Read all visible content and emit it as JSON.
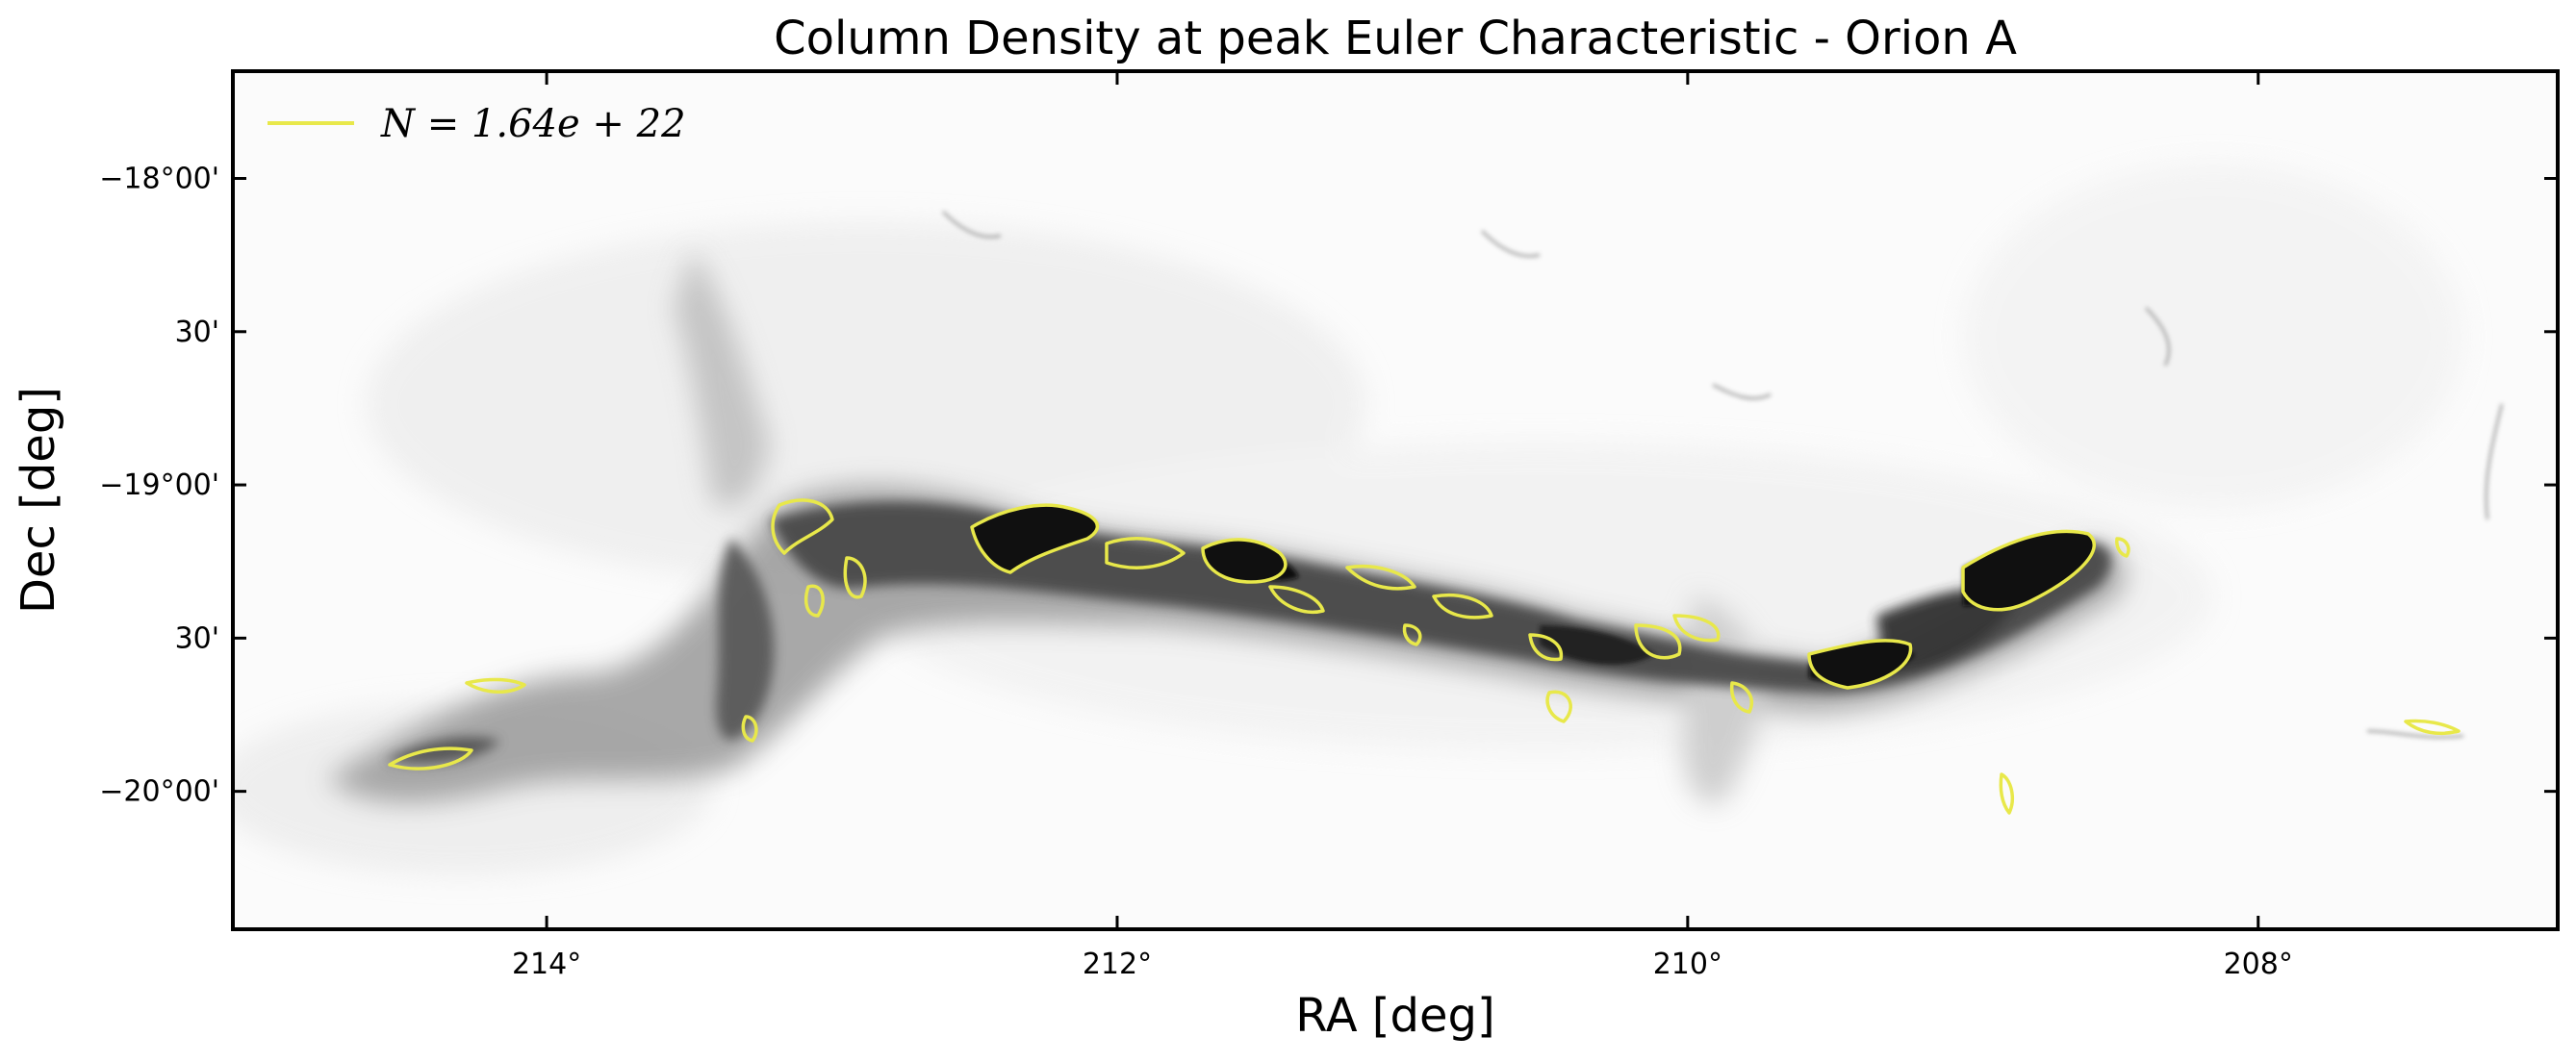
{
  "chart_data": {
    "type": "heatmap",
    "title": "Column Density at peak Euler Characteristic - Orion A",
    "xlabel": "RA [deg]",
    "ylabel": "Dec [deg]",
    "x_ticks": [
      "214°",
      "212°",
      "210°",
      "208°"
    ],
    "y_ticks": [
      "−18°00'",
      "30'",
      "−19°00'",
      "30'",
      "−20°00'"
    ],
    "xlim": [
      215.1,
      206.95
    ],
    "ylim": [
      -20.45,
      -17.65
    ],
    "x_tick_values": [
      214,
      212,
      210,
      208
    ],
    "y_tick_values": [
      -18.0,
      -18.5,
      -19.0,
      -19.5,
      -20.0
    ],
    "colormap": "grayscale (white = low, black = high)",
    "contour_color": "#e8e84a",
    "legend": {
      "placement": "top-left",
      "entries": [
        {
          "label": "N = 1.64e + 22",
          "color": "#e8e84a"
        }
      ]
    },
    "contour_level": "1.64e+22"
  }
}
